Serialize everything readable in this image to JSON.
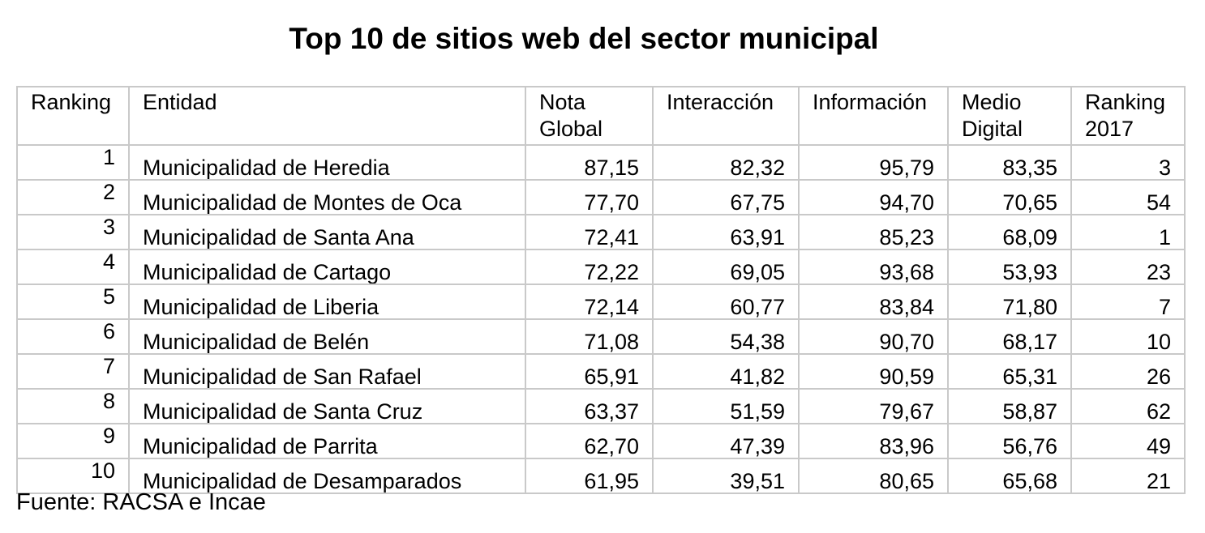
{
  "title": "Top 10 de sitios web del sector municipal",
  "headers": {
    "ranking": "Ranking",
    "entidad": "Entidad",
    "nota_global": "Nota Global",
    "interaccion": "Interacción",
    "informacion": "Información",
    "medio_digital": "Medio Digital",
    "ranking_2017": "Ranking 2017"
  },
  "rows": [
    {
      "rank": "1",
      "entity": "Municipalidad de Heredia",
      "nota": "87,15",
      "interaccion": "82,32",
      "informacion": "95,79",
      "medio": "83,35",
      "r2017": "3"
    },
    {
      "rank": "2",
      "entity": "Municipalidad de Montes de Oca",
      "nota": "77,70",
      "interaccion": "67,75",
      "informacion": "94,70",
      "medio": "70,65",
      "r2017": "54"
    },
    {
      "rank": "3",
      "entity": "Municipalidad de Santa Ana",
      "nota": "72,41",
      "interaccion": "63,91",
      "informacion": "85,23",
      "medio": "68,09",
      "r2017": "1"
    },
    {
      "rank": "4",
      "entity": "Municipalidad de Cartago",
      "nota": "72,22",
      "interaccion": "69,05",
      "informacion": "93,68",
      "medio": "53,93",
      "r2017": "23"
    },
    {
      "rank": "5",
      "entity": "Municipalidad de Liberia",
      "nota": "72,14",
      "interaccion": "60,77",
      "informacion": "83,84",
      "medio": "71,80",
      "r2017": "7"
    },
    {
      "rank": "6",
      "entity": "Municipalidad de Belén",
      "nota": "71,08",
      "interaccion": "54,38",
      "informacion": "90,70",
      "medio": "68,17",
      "r2017": "10"
    },
    {
      "rank": "7",
      "entity": "Municipalidad de San Rafael",
      "nota": "65,91",
      "interaccion": "41,82",
      "informacion": "90,59",
      "medio": "65,31",
      "r2017": "26"
    },
    {
      "rank": "8",
      "entity": "Municipalidad de Santa Cruz",
      "nota": "63,37",
      "interaccion": "51,59",
      "informacion": "79,67",
      "medio": "58,87",
      "r2017": "62"
    },
    {
      "rank": "9",
      "entity": "Municipalidad de Parrita",
      "nota": "62,70",
      "interaccion": "47,39",
      "informacion": "83,96",
      "medio": "56,76",
      "r2017": "49"
    },
    {
      "rank": "10",
      "entity": "Municipalidad de Desamparados",
      "nota": "61,95",
      "interaccion": "39,51",
      "informacion": "80,65",
      "medio": "65,68",
      "r2017": "21"
    }
  ],
  "source": "Fuente: RACSA e Incae"
}
